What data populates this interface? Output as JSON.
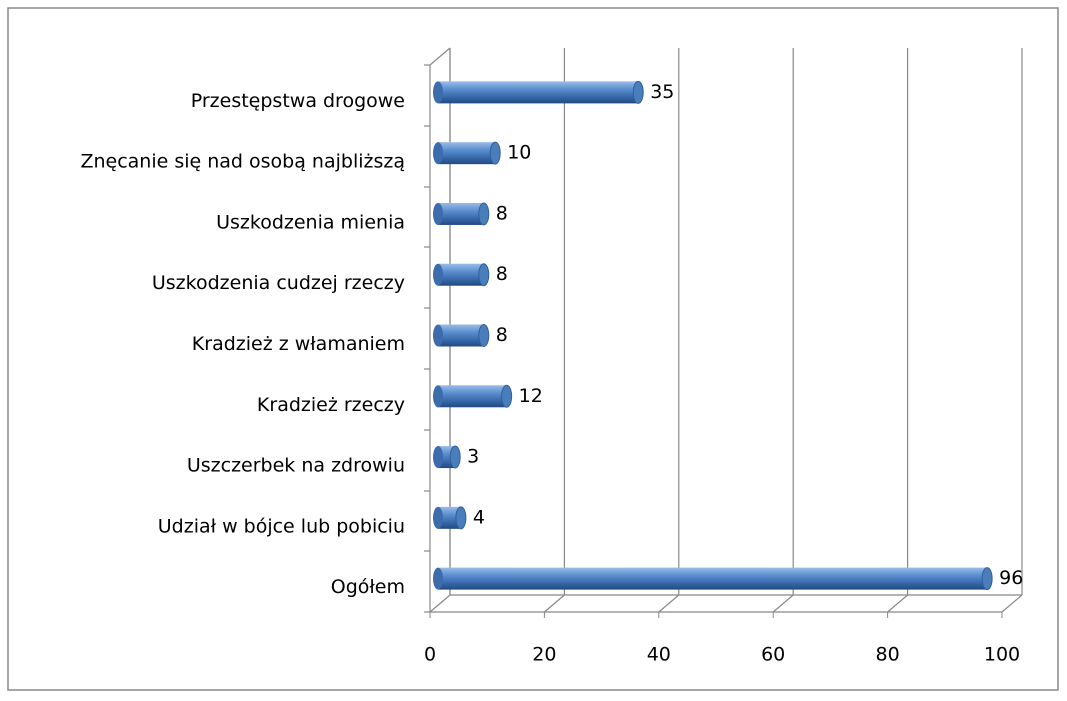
{
  "chart_data": {
    "type": "bar",
    "orientation": "horizontal",
    "categories": [
      "Przestępstwa drogowe",
      "Znęcanie się nad osobą najbliższą",
      "Uszkodzenia mienia",
      "Uszkodzenia cudzej rzeczy",
      "Kradzież z włamaniem",
      "Kradzież rzeczy",
      "Uszczerbek na zdrowiu",
      "Udział w bójce lub pobiciu",
      "Ogółem"
    ],
    "values": [
      35,
      10,
      8,
      8,
      8,
      12,
      3,
      4,
      96
    ],
    "color": "#4a7ebb",
    "xlim": [
      0,
      100
    ],
    "xticks": [
      0,
      20,
      40,
      60,
      80,
      100
    ],
    "grid": true
  }
}
